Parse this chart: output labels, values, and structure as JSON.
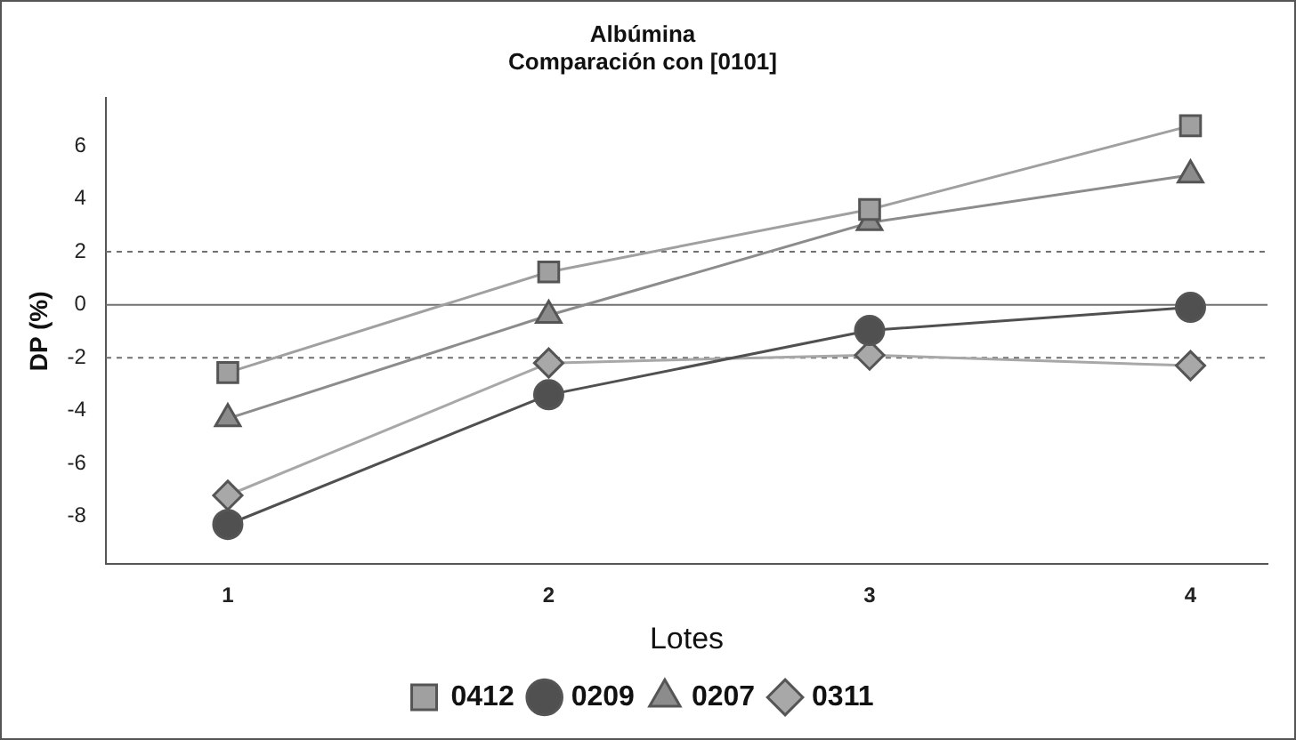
{
  "chart_data": {
    "type": "line",
    "title": "Albúmina",
    "subtitle": "Comparación con [0101]",
    "xlabel": "Lotes",
    "ylabel": "DP (%)",
    "x": [
      1,
      2,
      3,
      4
    ],
    "xlim": [
      0.62,
      4.24
    ],
    "xticks": [
      1,
      2,
      3,
      4
    ],
    "ylim": [
      -9.8,
      7.8
    ],
    "yticks": [
      -8,
      -6,
      -4,
      -2,
      0,
      2,
      4,
      6
    ],
    "series": [
      {
        "name": "0412",
        "color": "#a0a0a0",
        "marker": "square",
        "values": [
          -2.56,
          1.24,
          3.6,
          6.76
        ]
      },
      {
        "name": "0209",
        "color": "#505050",
        "marker": "circle",
        "values": [
          -8.3,
          -3.4,
          -0.97,
          -0.1
        ]
      },
      {
        "name": "0207",
        "color": "#8c8c8c",
        "marker": "triangle",
        "values": [
          -4.3,
          -0.4,
          3.1,
          4.9
        ]
      },
      {
        "name": "0311",
        "color": "#a8a8a8",
        "marker": "diamond",
        "values": [
          -7.2,
          -2.2,
          -1.9,
          -2.3
        ]
      }
    ],
    "ref_lines": [
      {
        "axis": "y",
        "value": 2,
        "line_style": "dashed",
        "color": "#707070"
      },
      {
        "axis": "y",
        "value": 0,
        "line_style": "solid",
        "color": "#707070"
      },
      {
        "axis": "y",
        "value": -2,
        "line_style": "dashed",
        "color": "#707070"
      }
    ],
    "grid": false,
    "legend": "bottom",
    "line_style": "solid"
  }
}
